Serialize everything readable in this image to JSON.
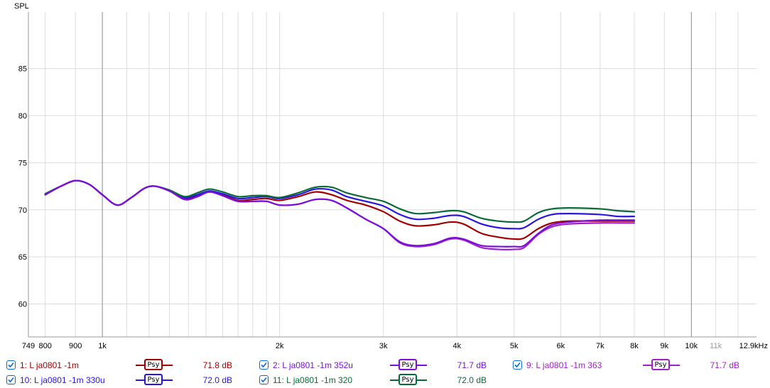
{
  "chart_data": {
    "type": "line",
    "ylabel": "SPL",
    "x_scale": "log",
    "xlim": [
      749,
      12900
    ],
    "ylim": [
      56.5,
      91
    ],
    "y_ticks": [
      60,
      65,
      70,
      75,
      80,
      85
    ],
    "y_tick_labels": [
      "60",
      "65",
      "70",
      "75",
      "80",
      "85"
    ],
    "x_tick_labels": [
      {
        "v": 749,
        "t": "749"
      },
      {
        "v": 800,
        "t": "800"
      },
      {
        "v": 900,
        "t": "900"
      },
      {
        "v": 1000,
        "t": "1k"
      },
      {
        "v": 2000,
        "t": "2k"
      },
      {
        "v": 3000,
        "t": "3k"
      },
      {
        "v": 4000,
        "t": "4k"
      },
      {
        "v": 5000,
        "t": "5k"
      },
      {
        "v": 6000,
        "t": "6k"
      },
      {
        "v": 7000,
        "t": "7k"
      },
      {
        "v": 8000,
        "t": "8k"
      },
      {
        "v": 9000,
        "t": "9k"
      },
      {
        "v": 10000,
        "t": "10k"
      },
      {
        "v": 11000,
        "t": "11k",
        "dim": true
      },
      {
        "v": 12900,
        "t": "12.9kHz"
      }
    ],
    "major_grid": [
      1000,
      10000
    ],
    "minor_grid": [
      800,
      900,
      1100,
      1200,
      1300,
      1400,
      1500,
      1600,
      1700,
      1800,
      1900,
      2000,
      3000,
      4000,
      5000,
      6000,
      7000,
      8000,
      9000,
      11000,
      12000
    ],
    "grid": true,
    "series": [
      {
        "name": "1: L ja0801 -1m",
        "color": "#a00000",
        "points": [
          [
            800,
            71.7
          ],
          [
            850,
            72.5
          ],
          [
            900,
            73.1
          ],
          [
            950,
            72.7
          ],
          [
            1000,
            71.6
          ],
          [
            1060,
            70.5
          ],
          [
            1120,
            71.3
          ],
          [
            1180,
            72.3
          ],
          [
            1230,
            72.5
          ],
          [
            1300,
            72.0
          ],
          [
            1380,
            71.2
          ],
          [
            1450,
            71.5
          ],
          [
            1520,
            71.9
          ],
          [
            1600,
            71.6
          ],
          [
            1700,
            71.0
          ],
          [
            1800,
            71.1
          ],
          [
            1900,
            71.2
          ],
          [
            2000,
            71.0
          ],
          [
            2150,
            71.4
          ],
          [
            2300,
            71.9
          ],
          [
            2450,
            71.6
          ],
          [
            2600,
            71.0
          ],
          [
            2800,
            70.5
          ],
          [
            3000,
            69.8
          ],
          [
            3200,
            68.8
          ],
          [
            3400,
            68.3
          ],
          [
            3650,
            68.4
          ],
          [
            3900,
            68.7
          ],
          [
            4100,
            68.5
          ],
          [
            4400,
            67.5
          ],
          [
            4700,
            67.1
          ],
          [
            5000,
            66.9
          ],
          [
            5200,
            67.0
          ],
          [
            5500,
            68.0
          ],
          [
            5800,
            68.6
          ],
          [
            6200,
            68.8
          ],
          [
            7000,
            68.8
          ],
          [
            7500,
            68.8
          ],
          [
            8000,
            68.8
          ]
        ]
      },
      {
        "name": "2: L ja0801 -1m 352u",
        "color": "#7a10d8",
        "points": [
          [
            800,
            71.6
          ],
          [
            850,
            72.5
          ],
          [
            900,
            73.1
          ],
          [
            950,
            72.7
          ],
          [
            1000,
            71.6
          ],
          [
            1060,
            70.5
          ],
          [
            1120,
            71.3
          ],
          [
            1180,
            72.3
          ],
          [
            1230,
            72.5
          ],
          [
            1300,
            72.0
          ],
          [
            1380,
            71.1
          ],
          [
            1450,
            71.4
          ],
          [
            1520,
            71.9
          ],
          [
            1600,
            71.5
          ],
          [
            1700,
            70.9
          ],
          [
            1800,
            70.9
          ],
          [
            1900,
            70.9
          ],
          [
            2000,
            70.5
          ],
          [
            2150,
            70.6
          ],
          [
            2300,
            71.1
          ],
          [
            2450,
            71.0
          ],
          [
            2600,
            70.2
          ],
          [
            2800,
            69.0
          ],
          [
            3000,
            68.0
          ],
          [
            3200,
            66.6
          ],
          [
            3400,
            66.2
          ],
          [
            3650,
            66.4
          ],
          [
            3900,
            67.0
          ],
          [
            4100,
            66.9
          ],
          [
            4400,
            66.2
          ],
          [
            4700,
            66.1
          ],
          [
            5000,
            66.1
          ],
          [
            5200,
            66.2
          ],
          [
            5500,
            67.5
          ],
          [
            5800,
            68.4
          ],
          [
            6200,
            68.7
          ],
          [
            7000,
            68.9
          ],
          [
            7500,
            68.9
          ],
          [
            8000,
            68.9
          ]
        ]
      },
      {
        "name": "9: L ja0801 -1m 363",
        "color": "#a020c8",
        "points": [
          [
            800,
            71.6
          ],
          [
            850,
            72.5
          ],
          [
            900,
            73.1
          ],
          [
            950,
            72.7
          ],
          [
            1000,
            71.6
          ],
          [
            1060,
            70.5
          ],
          [
            1120,
            71.3
          ],
          [
            1180,
            72.3
          ],
          [
            1230,
            72.5
          ],
          [
            1300,
            72.0
          ],
          [
            1380,
            71.1
          ],
          [
            1450,
            71.4
          ],
          [
            1520,
            71.9
          ],
          [
            1600,
            71.5
          ],
          [
            1700,
            70.9
          ],
          [
            1800,
            70.9
          ],
          [
            1900,
            70.9
          ],
          [
            2000,
            70.5
          ],
          [
            2150,
            70.6
          ],
          [
            2300,
            71.1
          ],
          [
            2450,
            71.0
          ],
          [
            2600,
            70.2
          ],
          [
            2800,
            69.0
          ],
          [
            3000,
            68.0
          ],
          [
            3200,
            66.5
          ],
          [
            3400,
            66.1
          ],
          [
            3650,
            66.3
          ],
          [
            3900,
            66.9
          ],
          [
            4100,
            66.8
          ],
          [
            4400,
            66.0
          ],
          [
            4700,
            65.8
          ],
          [
            5000,
            65.8
          ],
          [
            5200,
            66.0
          ],
          [
            5500,
            67.4
          ],
          [
            5800,
            68.2
          ],
          [
            6200,
            68.5
          ],
          [
            7000,
            68.6
          ],
          [
            7500,
            68.6
          ],
          [
            8000,
            68.6
          ]
        ]
      },
      {
        "name": "10: L ja0801 -1m 330u",
        "color": "#2a14e0",
        "points": [
          [
            800,
            71.7
          ],
          [
            850,
            72.5
          ],
          [
            900,
            73.1
          ],
          [
            950,
            72.7
          ],
          [
            1000,
            71.6
          ],
          [
            1060,
            70.5
          ],
          [
            1120,
            71.3
          ],
          [
            1180,
            72.3
          ],
          [
            1230,
            72.5
          ],
          [
            1300,
            72.0
          ],
          [
            1380,
            71.3
          ],
          [
            1450,
            71.6
          ],
          [
            1520,
            72.0
          ],
          [
            1600,
            71.7
          ],
          [
            1700,
            71.2
          ],
          [
            1800,
            71.3
          ],
          [
            1900,
            71.4
          ],
          [
            2000,
            71.2
          ],
          [
            2150,
            71.6
          ],
          [
            2300,
            72.2
          ],
          [
            2450,
            72.1
          ],
          [
            2600,
            71.4
          ],
          [
            2800,
            70.9
          ],
          [
            3000,
            70.4
          ],
          [
            3200,
            69.5
          ],
          [
            3400,
            69.0
          ],
          [
            3650,
            69.1
          ],
          [
            3900,
            69.4
          ],
          [
            4100,
            69.3
          ],
          [
            4400,
            68.5
          ],
          [
            4700,
            68.1
          ],
          [
            5000,
            68.0
          ],
          [
            5200,
            68.1
          ],
          [
            5500,
            69.0
          ],
          [
            5800,
            69.5
          ],
          [
            6200,
            69.6
          ],
          [
            7000,
            69.5
          ],
          [
            7500,
            69.3
          ],
          [
            8000,
            69.3
          ]
        ]
      },
      {
        "name": "11: L ja0801 -1m 320",
        "color": "#0a6a3a",
        "points": [
          [
            800,
            71.7
          ],
          [
            850,
            72.5
          ],
          [
            900,
            73.1
          ],
          [
            950,
            72.7
          ],
          [
            1000,
            71.6
          ],
          [
            1060,
            70.5
          ],
          [
            1120,
            71.3
          ],
          [
            1180,
            72.3
          ],
          [
            1230,
            72.5
          ],
          [
            1300,
            72.1
          ],
          [
            1380,
            71.4
          ],
          [
            1450,
            71.8
          ],
          [
            1520,
            72.2
          ],
          [
            1600,
            71.9
          ],
          [
            1700,
            71.4
          ],
          [
            1800,
            71.5
          ],
          [
            1900,
            71.5
          ],
          [
            2000,
            71.3
          ],
          [
            2150,
            71.8
          ],
          [
            2300,
            72.4
          ],
          [
            2450,
            72.4
          ],
          [
            2600,
            71.8
          ],
          [
            2800,
            71.3
          ],
          [
            3000,
            70.9
          ],
          [
            3200,
            70.1
          ],
          [
            3400,
            69.6
          ],
          [
            3650,
            69.7
          ],
          [
            3900,
            69.9
          ],
          [
            4100,
            69.8
          ],
          [
            4400,
            69.1
          ],
          [
            4700,
            68.8
          ],
          [
            5000,
            68.7
          ],
          [
            5200,
            68.8
          ],
          [
            5500,
            69.7
          ],
          [
            5800,
            70.1
          ],
          [
            6200,
            70.2
          ],
          [
            7000,
            70.1
          ],
          [
            7500,
            69.9
          ],
          [
            8000,
            69.8
          ]
        ]
      }
    ]
  },
  "legend": [
    {
      "id": "s1",
      "label": "1: L ja0801 -1m",
      "value": "71.8 dB",
      "psy": "Psy",
      "color": "#a00000",
      "checked": true
    },
    {
      "id": "s2",
      "label": "2: L ja0801 -1m 352u",
      "value": "71.7 dB",
      "psy": "Psy",
      "color": "#7a10d8",
      "checked": true
    },
    {
      "id": "s9",
      "label": "9: L ja0801 -1m 363",
      "value": "71.7 dB",
      "psy": "Psy",
      "color": "#a020c8",
      "checked": true
    },
    {
      "id": "s10",
      "label": "10: L ja0801 -1m 330u",
      "value": "72.0 dB",
      "psy": "Psy",
      "color": "#2a14e0",
      "checked": true
    },
    {
      "id": "s11",
      "label": "11: L ja0801 -1m 320",
      "value": "72.0 dB",
      "psy": "Psy",
      "color": "#0a6a3a",
      "checked": true
    }
  ]
}
